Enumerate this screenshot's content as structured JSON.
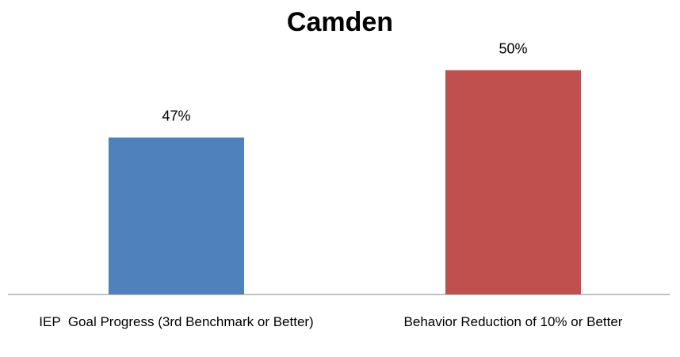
{
  "chart_data": {
    "type": "bar",
    "title": "Camden",
    "categories": [
      "IEP  Goal Progress (3rd Benchmark or Better)",
      "Behavior Reduction of 10% or Better"
    ],
    "values": [
      47,
      50
    ],
    "value_labels": [
      "47%",
      "50%"
    ],
    "colors": [
      "#4f81bd",
      "#c0504d"
    ],
    "ylim": [
      40,
      52
    ]
  }
}
